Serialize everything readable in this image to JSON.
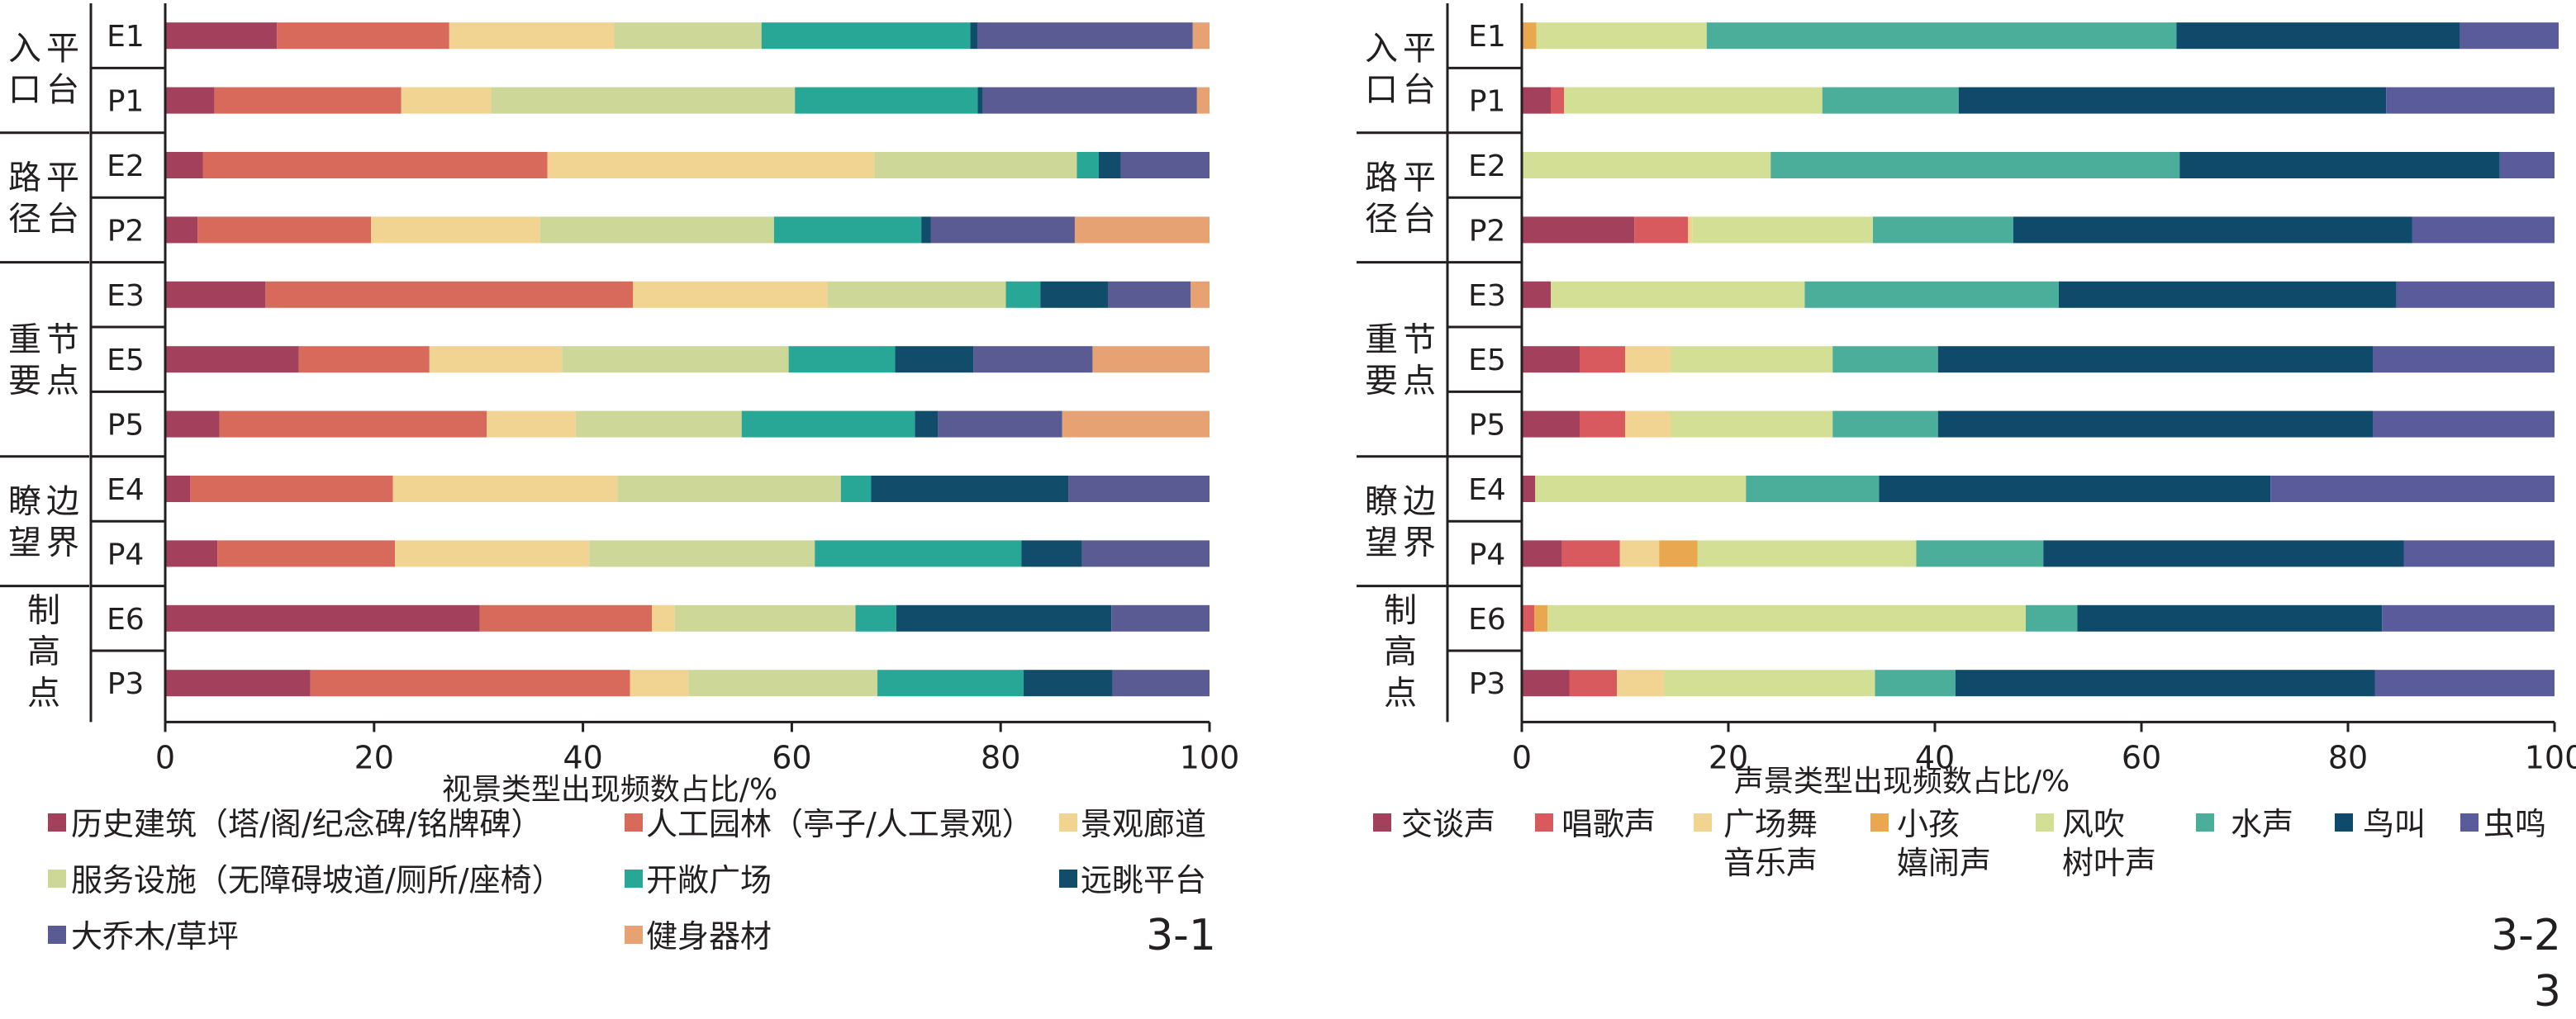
{
  "chart_data": [
    {
      "type": "bar",
      "stacked": true,
      "orientation": "horizontal",
      "panel_label": "3-1",
      "xlabel": "视景类型出现频数占比/%",
      "xlim": [
        0,
        100
      ],
      "xticks": [
        "0",
        "20",
        "40",
        "60",
        "80",
        "100"
      ],
      "groups": [
        {
          "label": "入平口台",
          "lines": [
            "入平",
            "口台"
          ],
          "rows": [
            0,
            1
          ]
        },
        {
          "label": "路平径台",
          "lines": [
            "路平",
            "径台"
          ],
          "rows": [
            2,
            3
          ]
        },
        {
          "label": "重节要点",
          "lines": [
            "重节",
            "要点"
          ],
          "rows": [
            4,
            5,
            6
          ]
        },
        {
          "label": "瞭边望界",
          "lines": [
            "瞭边",
            "望界"
          ],
          "rows": [
            7,
            8
          ]
        },
        {
          "label": "制高点",
          "lines": [
            "制",
            "高",
            "点"
          ],
          "rows": [
            9,
            10
          ]
        }
      ],
      "categories": [
        "E1",
        "P1",
        "E2",
        "P2",
        "E3",
        "E5",
        "P5",
        "E4",
        "P4",
        "E6",
        "P3"
      ],
      "series": [
        {
          "name": "历史建筑（塔/阁/纪念碑/铭牌碑）",
          "color": "#a3405c",
          "values": [
            10.7,
            4.7,
            3.6,
            3.1,
            9.6,
            12.8,
            5.2,
            2.4,
            5.0,
            30.1,
            13.9
          ]
        },
        {
          "name": "人工园林（亭子/人工景观）",
          "color": "#d76a5a",
          "values": [
            16.5,
            17.9,
            33.0,
            16.6,
            35.2,
            12.5,
            25.6,
            19.4,
            17.0,
            16.5,
            30.6
          ]
        },
        {
          "name": "景观廊道",
          "color": "#f1d392",
          "values": [
            15.8,
            8.6,
            31.3,
            16.2,
            18.6,
            12.7,
            8.5,
            21.5,
            18.6,
            2.2,
            5.6
          ]
        },
        {
          "name": "服务设施（无障碍坡道/厕所/座椅）",
          "color": "#cdd797",
          "values": [
            14.1,
            29.1,
            19.4,
            22.4,
            17.1,
            21.7,
            15.9,
            21.4,
            21.6,
            17.3,
            18.1
          ]
        },
        {
          "name": "开敞广场",
          "color": "#28a696",
          "values": [
            20.0,
            17.5,
            2.1,
            14.1,
            3.3,
            10.2,
            16.6,
            2.9,
            19.8,
            3.9,
            14.0
          ]
        },
        {
          "name": "远眺平台",
          "color": "#124c6b",
          "values": [
            0.7,
            0.5,
            2.1,
            0.9,
            6.5,
            7.5,
            2.2,
            18.9,
            5.8,
            20.6,
            8.5
          ]
        },
        {
          "name": "大乔木/草坪",
          "color": "#5a5b92",
          "values": [
            20.6,
            20.5,
            8.5,
            13.8,
            7.9,
            11.4,
            11.9,
            13.5,
            12.2,
            9.4,
            9.3
          ]
        },
        {
          "name": "健身器材",
          "color": "#e7a274",
          "values": [
            1.6,
            1.2,
            0.0,
            12.9,
            1.8,
            11.2,
            14.1,
            0.0,
            0.0,
            0.0,
            0.0
          ]
        }
      ]
    },
    {
      "type": "bar",
      "stacked": true,
      "orientation": "horizontal",
      "panel_label": "3-2",
      "figure_number": "3",
      "xlabel": "声景类型出现频数占比/%",
      "xlim": [
        0,
        100
      ],
      "xticks": [
        "0",
        "20",
        "40",
        "60",
        "80",
        "100"
      ],
      "groups": [
        {
          "label": "入平口台",
          "lines": [
            "入平",
            "口台"
          ],
          "rows": [
            0,
            1
          ]
        },
        {
          "label": "路平径台",
          "lines": [
            "路平",
            "径台"
          ],
          "rows": [
            2,
            3
          ]
        },
        {
          "label": "重节要点",
          "lines": [
            "重节",
            "要点"
          ],
          "rows": [
            4,
            5,
            6
          ]
        },
        {
          "label": "瞭边望界",
          "lines": [
            "瞭边",
            "望界"
          ],
          "rows": [
            7,
            8
          ]
        },
        {
          "label": "制高点",
          "lines": [
            "制",
            "高",
            "点"
          ],
          "rows": [
            9,
            10
          ]
        }
      ],
      "categories": [
        "E1",
        "P1",
        "E2",
        "P2",
        "E3",
        "E5",
        "P5",
        "E4",
        "P4",
        "E6",
        "P3"
      ],
      "series": [
        {
          "name": "交谈声",
          "color": "#a3405c",
          "values": [
            0.0,
            2.8,
            0.0,
            10.9,
            2.8,
            5.6,
            5.6,
            1.3,
            3.9,
            0.0,
            4.6
          ]
        },
        {
          "name": "唱歌声",
          "color": "#d95a5e",
          "values": [
            0.0,
            1.3,
            0.0,
            5.2,
            0.0,
            4.4,
            4.4,
            0.0,
            5.6,
            1.2,
            4.6
          ]
        },
        {
          "name": "广场舞音乐声",
          "color": "#f1d392",
          "values": [
            0.0,
            0.0,
            0.0,
            0.4,
            0.0,
            4.4,
            4.4,
            0.0,
            3.8,
            0.0,
            4.6
          ]
        },
        {
          "name": "小孩嬉闹声",
          "color": "#e9a84f",
          "values": [
            1.4,
            0.0,
            0.0,
            0.0,
            0.0,
            0.0,
            0.0,
            0.0,
            3.7,
            1.3,
            0.0
          ]
        },
        {
          "name": "风吹树叶声",
          "color": "#d4df96",
          "values": [
            16.5,
            25.0,
            24.1,
            17.5,
            24.6,
            15.7,
            15.7,
            20.4,
            21.2,
            46.3,
            20.4
          ]
        },
        {
          "name": "水声",
          "color": "#4aae9b",
          "values": [
            45.5,
            13.2,
            39.6,
            13.6,
            24.6,
            10.2,
            10.2,
            12.9,
            12.3,
            5.0,
            7.8
          ]
        },
        {
          "name": "鸟叫",
          "color": "#0f4a6b",
          "values": [
            27.4,
            41.4,
            31.0,
            38.6,
            32.7,
            42.1,
            42.1,
            37.9,
            34.9,
            29.5,
            40.6
          ]
        },
        {
          "name": "虫鸣",
          "color": "#5a5b9b",
          "values": [
            9.6,
            16.3,
            5.3,
            13.8,
            15.3,
            17.6,
            17.6,
            27.5,
            14.6,
            16.7,
            17.4
          ]
        }
      ]
    }
  ],
  "legends": {
    "left": [
      {
        "label": "历史建筑（塔/阁/纪念碑/铭牌碑）"
      },
      {
        "label": "人工园林（亭子/人工景观）"
      },
      {
        "label": "景观廊道"
      },
      {
        "label": "服务设施（无障碍坡道/厕所/座椅）"
      },
      {
        "label": "开敞广场"
      },
      {
        "label": "远眺平台"
      },
      {
        "label": "大乔木/草坪"
      },
      {
        "label": "健身器材"
      }
    ],
    "right": [
      {
        "line1": "交谈声",
        "line2": ""
      },
      {
        "line1": "唱歌声",
        "line2": ""
      },
      {
        "line1": "广场舞",
        "line2": "音乐声"
      },
      {
        "line1": "小孩",
        "line2": "嬉闹声"
      },
      {
        "line1": "风吹",
        "line2": "树叶声"
      },
      {
        "line1": "水声",
        "line2": ""
      },
      {
        "line1": "鸟叫",
        "line2": ""
      },
      {
        "line1": "虫鸣",
        "line2": ""
      }
    ]
  }
}
